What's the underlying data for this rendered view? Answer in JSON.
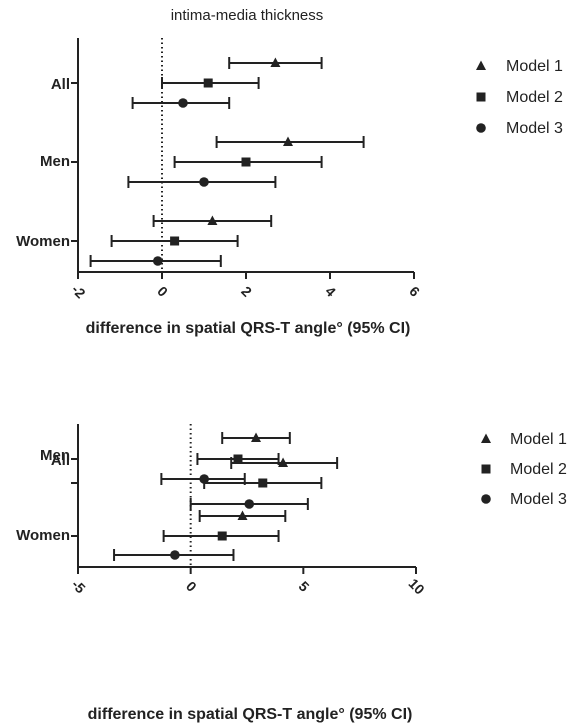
{
  "chart_data": [
    {
      "type": "forest",
      "title": "intima-media thickness",
      "xlabel": "difference in spatial  QRS-T angle° (95% CI)",
      "xlim": [
        -2,
        6
      ],
      "xticks": [
        "-2",
        "0",
        "2",
        "4",
        "6"
      ],
      "categories": [
        "All",
        "Men",
        "Women"
      ],
      "legend": {
        "placement": "right",
        "entries": [
          "Model 1",
          "Model 2",
          "Model 3"
        ]
      },
      "series": [
        {
          "name": "Model 1",
          "marker": "triangle",
          "estimates": [
            2.7,
            3.0,
            1.2
          ],
          "lower": [
            1.6,
            1.3,
            -0.2
          ],
          "upper": [
            3.8,
            4.8,
            2.6
          ]
        },
        {
          "name": "Model 2",
          "marker": "square",
          "estimates": [
            1.1,
            2.0,
            0.3
          ],
          "lower": [
            0.0,
            0.3,
            -1.2
          ],
          "upper": [
            2.3,
            3.8,
            1.8
          ]
        },
        {
          "name": "Model 3",
          "marker": "circle",
          "estimates": [
            0.5,
            1.0,
            -0.1
          ],
          "lower": [
            -0.7,
            -0.8,
            -1.7
          ],
          "upper": [
            1.6,
            2.7,
            1.4
          ]
        }
      ],
      "reference_line": 0
    },
    {
      "type": "forest",
      "title": "",
      "xlabel": "difference in spatial  QRS-T angle° (95% CI)",
      "xlim": [
        -5,
        10
      ],
      "xticks": [
        "-5",
        "0",
        "5",
        "10"
      ],
      "categories": [
        "All",
        "Men",
        "Women"
      ],
      "legend": {
        "placement": "right",
        "entries": [
          "Model 1",
          "Model 2",
          "Model 3"
        ]
      },
      "series": [
        {
          "name": "Model 1",
          "marker": "triangle",
          "estimates": [
            2.9,
            4.1,
            2.3
          ],
          "lower": [
            1.4,
            1.8,
            0.4
          ],
          "upper": [
            4.4,
            6.5,
            4.2
          ]
        },
        {
          "name": "Model 2",
          "marker": "square",
          "estimates": [
            2.1,
            3.2,
            1.4
          ],
          "lower": [
            0.3,
            0.6,
            -1.2
          ],
          "upper": [
            3.9,
            5.8,
            3.9
          ]
        },
        {
          "name": "Model 3",
          "marker": "circle",
          "estimates": [
            0.6,
            2.6,
            -0.7
          ],
          "lower": [
            -1.3,
            0.0,
            -3.4
          ],
          "upper": [
            2.4,
            5.2,
            1.9
          ]
        }
      ],
      "reference_line": 0
    }
  ]
}
